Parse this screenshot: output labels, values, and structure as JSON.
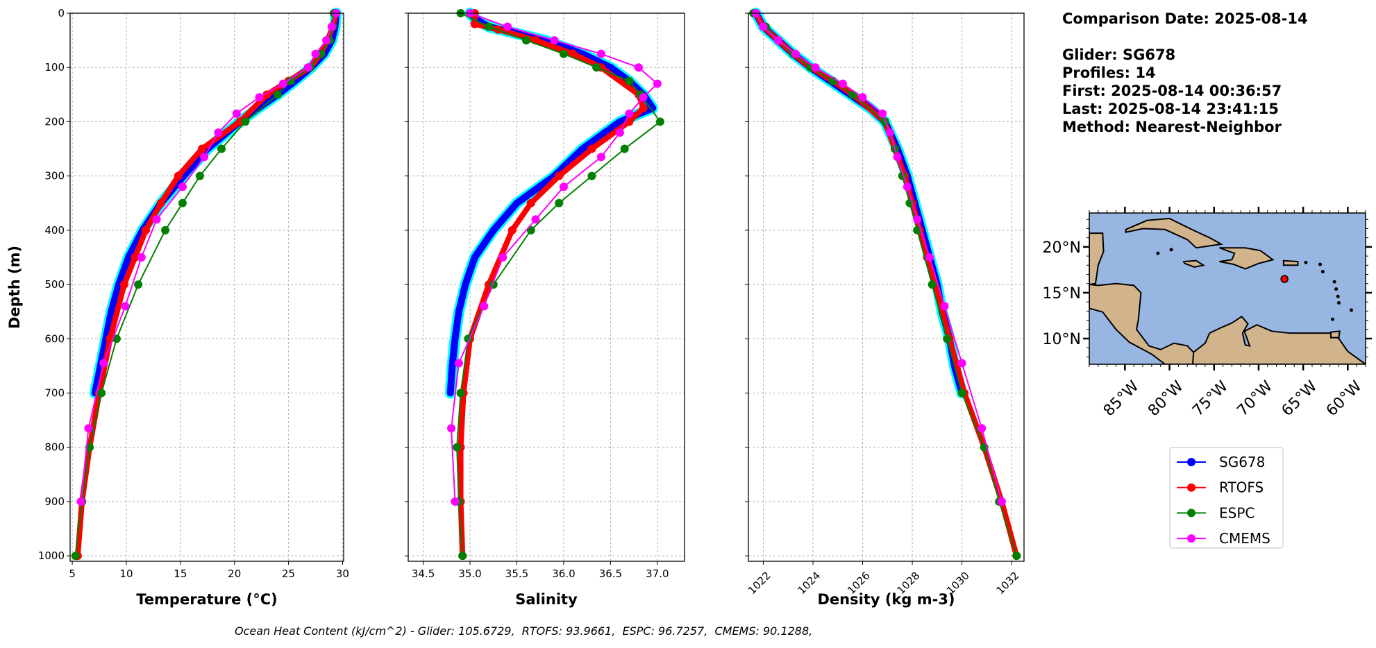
{
  "info": {
    "comparison_date": "Comparison Date: 2025-08-14",
    "glider": "Glider: SG678",
    "profiles": "Profiles: 14",
    "first": "First: 2025-08-14 00:36:57",
    "last": "Last: 2025-08-14 23:41:15",
    "method": "Method: Nearest-Neighbor"
  },
  "footer": "Ocean Heat Content (kJ/cm^2) - Glider: 105.6729,  RTOFS: 93.9661,  ESPC: 96.7257,  CMEMS: 90.1288,",
  "colors": {
    "SG678": "#0000ff",
    "RTOFS": "#ff0000",
    "ESPC": "#008000",
    "CMEMS": "#ff00ff",
    "spread": "#00ffff",
    "ocean": "#97b6e1",
    "land": "#d2b48c"
  },
  "legend": [
    "SG678",
    "RTOFS",
    "ESPC",
    "CMEMS"
  ],
  "chart_data": [
    {
      "type": "line",
      "xlabel": "Temperature (°C)",
      "ylabel": "Depth (m)",
      "xlim": [
        4.8,
        30.1
      ],
      "ylim": [
        1010,
        0
      ],
      "xticks": [
        5,
        10,
        15,
        20,
        25,
        30
      ],
      "yticks": [
        0,
        100,
        200,
        300,
        400,
        500,
        600,
        700,
        800,
        900,
        1000
      ],
      "grid": true,
      "series": [
        {
          "name": "SG678",
          "depth": [
            0,
            25,
            50,
            75,
            100,
            125,
            150,
            175,
            200,
            250,
            300,
            350,
            400,
            450,
            500,
            550,
            600,
            650,
            700
          ],
          "values": [
            29.4,
            29.3,
            29.0,
            28.3,
            27.1,
            25.6,
            24.0,
            22.2,
            20.5,
            17.5,
            15.3,
            13.2,
            11.5,
            10.2,
            9.3,
            8.6,
            8.1,
            7.6,
            7.1
          ]
        },
        {
          "name": "RTOFS",
          "depth": [
            0,
            25,
            50,
            75,
            100,
            125,
            150,
            200,
            250,
            300,
            350,
            400,
            450,
            500,
            600,
            700,
            800,
            900,
            1000
          ],
          "values": [
            29.4,
            29.1,
            28.6,
            28.0,
            27.0,
            25.0,
            23.0,
            20.5,
            17.0,
            14.8,
            13.2,
            11.8,
            10.8,
            9.8,
            8.5,
            7.5,
            6.6,
            5.9,
            5.5
          ]
        },
        {
          "name": "ESPC",
          "depth": [
            0,
            25,
            50,
            75,
            100,
            125,
            150,
            200,
            250,
            300,
            350,
            400,
            500,
            600,
            700,
            800,
            900,
            1000
          ],
          "values": [
            29.2,
            29.1,
            28.8,
            28.0,
            27.0,
            25.2,
            24.0,
            21.0,
            18.8,
            16.8,
            15.2,
            13.6,
            11.1,
            9.1,
            7.7,
            6.6,
            5.9,
            5.3
          ]
        },
        {
          "name": "CMEMS",
          "depth": [
            0,
            25,
            50,
            75,
            100,
            130,
            155,
            185,
            220,
            265,
            320,
            380,
            450,
            540,
            645,
            765,
            900
          ],
          "values": [
            29.4,
            29.0,
            28.5,
            27.5,
            26.8,
            24.5,
            22.3,
            20.2,
            18.5,
            17.2,
            15.2,
            12.8,
            11.4,
            9.9,
            7.9,
            6.5,
            5.8
          ]
        }
      ]
    },
    {
      "type": "line",
      "xlabel": "Salinity",
      "ylabel": "",
      "xlim": [
        34.34,
        37.29
      ],
      "ylim": [
        1010,
        0
      ],
      "xticks": [
        34.5,
        35.0,
        35.5,
        36.0,
        36.5,
        37.0
      ],
      "yticks": [
        0,
        100,
        200,
        300,
        400,
        500,
        600,
        700,
        800,
        900,
        1000
      ],
      "grid": true,
      "series": [
        {
          "name": "SG678",
          "depth": [
            0,
            10,
            25,
            50,
            75,
            100,
            125,
            150,
            175,
            200,
            250,
            300,
            350,
            400,
            450,
            500,
            550,
            600,
            650,
            700
          ],
          "values": [
            35.0,
            35.05,
            35.2,
            35.8,
            36.2,
            36.5,
            36.7,
            36.85,
            36.95,
            36.6,
            36.2,
            35.9,
            35.5,
            35.25,
            35.05,
            34.95,
            34.88,
            34.84,
            34.81,
            34.79
          ]
        },
        {
          "name": "RTOFS",
          "depth": [
            0,
            20,
            30,
            50,
            75,
            100,
            150,
            175,
            200,
            250,
            300,
            350,
            400,
            500,
            600,
            700,
            800,
            900,
            1000
          ],
          "values": [
            35.05,
            35.05,
            35.3,
            35.7,
            36.1,
            36.4,
            36.8,
            36.85,
            36.7,
            36.3,
            35.95,
            35.65,
            35.45,
            35.2,
            35.0,
            34.93,
            34.9,
            34.9,
            34.92
          ]
        },
        {
          "name": "ESPC",
          "depth": [
            0,
            25,
            50,
            75,
            100,
            125,
            150,
            200,
            250,
            300,
            350,
            400,
            500,
            600,
            700,
            800,
            900,
            1000
          ],
          "values": [
            34.9,
            35.2,
            35.6,
            36.0,
            36.35,
            36.7,
            36.82,
            37.03,
            36.65,
            36.3,
            35.95,
            35.65,
            35.25,
            34.98,
            34.9,
            34.86,
            34.88,
            34.92
          ]
        },
        {
          "name": "CMEMS",
          "depth": [
            0,
            25,
            50,
            75,
            100,
            130,
            155,
            185,
            220,
            265,
            320,
            380,
            450,
            540,
            645,
            765,
            900
          ],
          "values": [
            35.0,
            35.4,
            35.9,
            36.4,
            36.8,
            37.0,
            36.85,
            36.7,
            36.6,
            36.4,
            36.0,
            35.7,
            35.35,
            35.15,
            34.88,
            34.8,
            34.84
          ]
        }
      ]
    },
    {
      "type": "line",
      "xlabel": "Density (kg m-3)",
      "ylabel": "",
      "xlim": [
        1021.4,
        1032.5
      ],
      "ylim": [
        1010,
        0
      ],
      "xticks": [
        1022,
        1024,
        1026,
        1028,
        1030,
        1032
      ],
      "yticks": [
        0,
        100,
        200,
        300,
        400,
        500,
        600,
        700,
        800,
        900,
        1000
      ],
      "grid": true,
      "series": [
        {
          "name": "SG678",
          "depth": [
            0,
            25,
            50,
            75,
            100,
            125,
            150,
            175,
            200,
            250,
            300,
            350,
            400,
            450,
            500,
            550,
            600,
            650,
            700
          ],
          "values": [
            1021.7,
            1022.0,
            1022.6,
            1023.2,
            1023.9,
            1024.7,
            1025.5,
            1026.3,
            1026.9,
            1027.4,
            1027.8,
            1028.1,
            1028.4,
            1028.7,
            1029.0,
            1029.2,
            1029.5,
            1029.7,
            1030.0
          ]
        },
        {
          "name": "RTOFS",
          "depth": [
            0,
            25,
            50,
            75,
            100,
            125,
            150,
            200,
            250,
            300,
            350,
            400,
            450,
            500,
            600,
            700,
            800,
            900,
            1000
          ],
          "values": [
            1021.7,
            1022.0,
            1022.6,
            1023.2,
            1023.9,
            1024.8,
            1025.6,
            1026.9,
            1027.3,
            1027.7,
            1028.0,
            1028.3,
            1028.6,
            1028.9,
            1029.5,
            1030.1,
            1030.9,
            1031.6,
            1032.2
          ]
        },
        {
          "name": "ESPC",
          "depth": [
            0,
            25,
            50,
            75,
            100,
            125,
            150,
            200,
            250,
            300,
            350,
            400,
            500,
            600,
            700,
            800,
            900,
            1000
          ],
          "values": [
            1021.6,
            1022.1,
            1022.6,
            1023.2,
            1023.9,
            1024.8,
            1025.6,
            1026.9,
            1027.3,
            1027.6,
            1027.9,
            1028.2,
            1028.8,
            1029.4,
            1030.0,
            1030.9,
            1031.5,
            1032.2
          ]
        },
        {
          "name": "CMEMS",
          "depth": [
            0,
            25,
            50,
            75,
            100,
            130,
            155,
            185,
            220,
            265,
            320,
            380,
            450,
            540,
            645,
            765,
            900
          ],
          "values": [
            1021.7,
            1022.0,
            1022.6,
            1023.3,
            1024.1,
            1025.2,
            1026.0,
            1026.8,
            1027.1,
            1027.4,
            1027.8,
            1028.2,
            1028.7,
            1029.3,
            1030.0,
            1030.8,
            1031.6
          ]
        }
      ]
    }
  ],
  "map": {
    "lon_range": [
      -89,
      -58
    ],
    "lat_range": [
      7.2,
      23.7
    ],
    "lon_ticks": [
      -85,
      -80,
      -75,
      -70,
      -65,
      -60
    ],
    "lon_tick_labels": [
      "85°W",
      "80°W",
      "75°W",
      "70°W",
      "65°W",
      "60°W"
    ],
    "lat_ticks": [
      10,
      15,
      20
    ],
    "lat_tick_labels": [
      "10°N",
      "15°N",
      "20°N"
    ],
    "glider_position": {
      "lon": -67.1,
      "lat": 16.5
    }
  }
}
